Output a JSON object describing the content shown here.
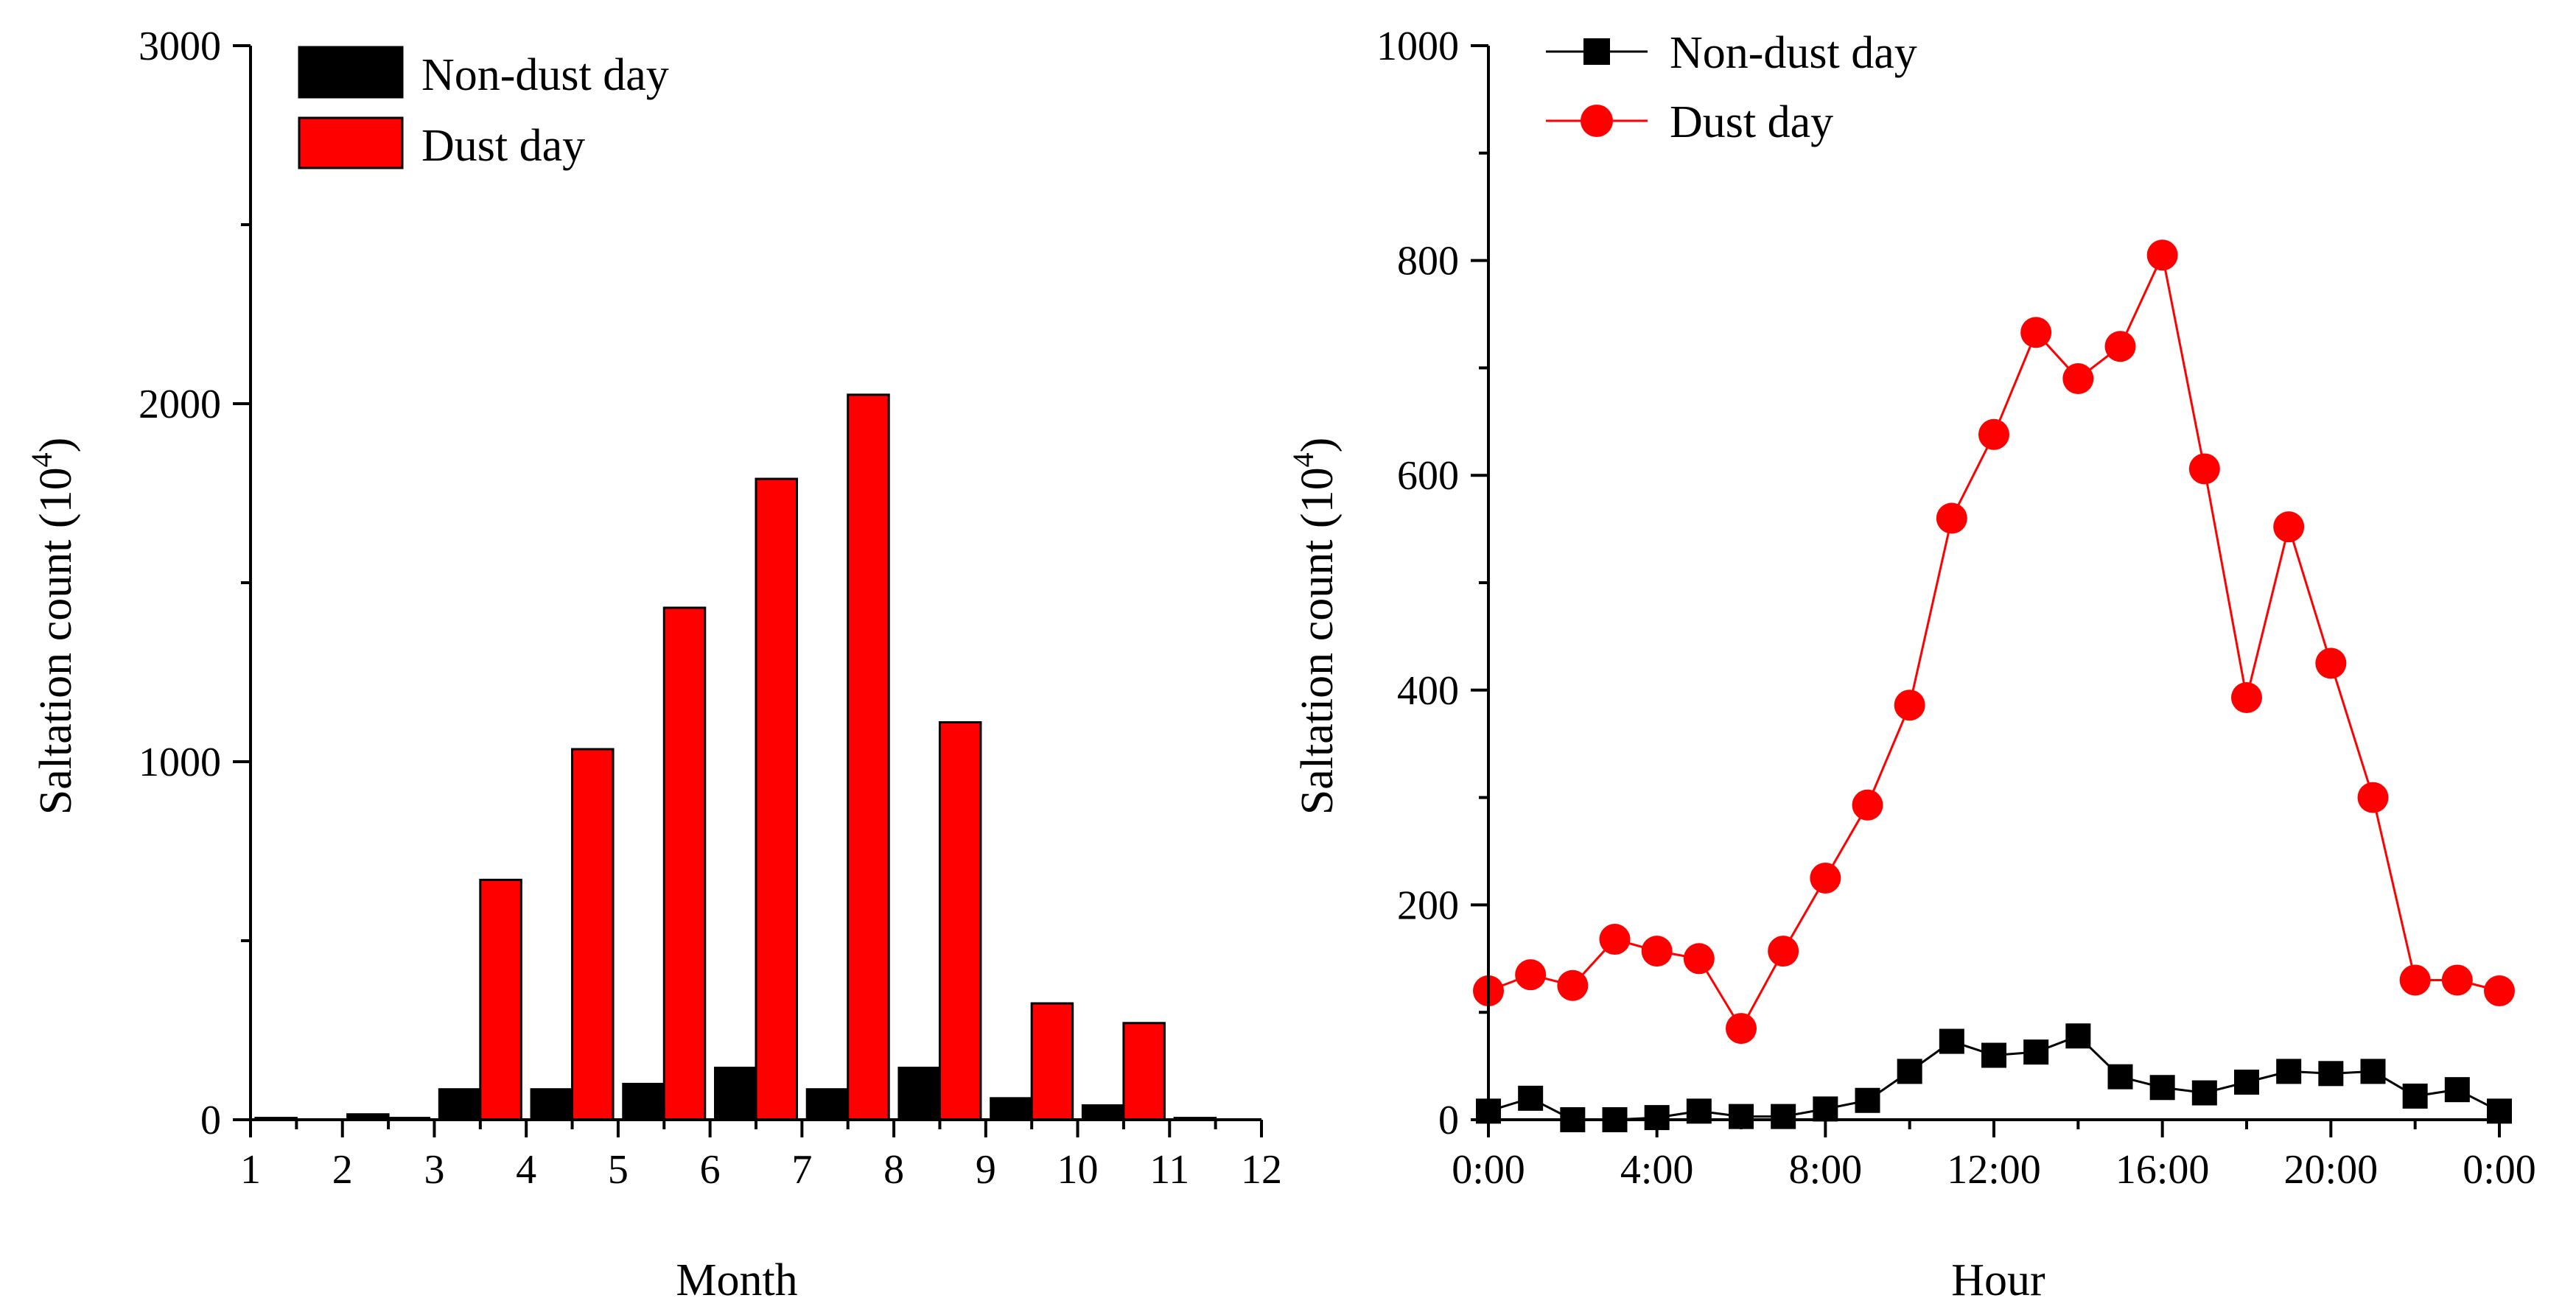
{
  "chart_data": [
    {
      "type": "bar",
      "xlabel": "Month",
      "ylabel": "Saltation count (10",
      "ylabel_exponent": "4",
      "ylabel_close": ")",
      "xlim": [
        1,
        12
      ],
      "ylim": [
        0,
        3000
      ],
      "x_ticks": [
        "1",
        "2",
        "3",
        "4",
        "5",
        "6",
        "7",
        "8",
        "9",
        "10",
        "11",
        "12"
      ],
      "y_ticks": [
        "0",
        "1000",
        "2000",
        "3000"
      ],
      "y_tick_values": [
        0,
        1000,
        2000,
        3000
      ],
      "y_minor_step": 500,
      "categories": [
        1,
        2,
        3,
        4,
        5,
        6,
        7,
        8,
        9,
        10,
        11
      ],
      "series": [
        {
          "name": "Non-dust day",
          "color": "#000000",
          "values": [
            5,
            15,
            85,
            85,
            100,
            145,
            85,
            145,
            60,
            40,
            5
          ]
        },
        {
          "name": "Dust day",
          "color": "#ff0000",
          "values": [
            0,
            5,
            670,
            1035,
            1430,
            1790,
            2025,
            1110,
            325,
            270,
            0
          ]
        }
      ],
      "legend": "top-left"
    },
    {
      "type": "line",
      "xlabel": "Hour",
      "ylabel": "Saltation count (10",
      "ylabel_exponent": "4",
      "ylabel_close": ")",
      "xlim": [
        0,
        24
      ],
      "ylim": [
        0,
        1000
      ],
      "x_ticks": [
        "0:00",
        "4:00",
        "8:00",
        "12:00",
        "16:00",
        "20:00",
        "0:00"
      ],
      "x_tick_values": [
        0,
        4,
        8,
        12,
        16,
        20,
        24
      ],
      "y_ticks": [
        "0",
        "200",
        "400",
        "600",
        "800",
        "1000"
      ],
      "y_tick_values": [
        0,
        200,
        400,
        600,
        800,
        1000
      ],
      "y_minor_step": 100,
      "x": [
        0,
        1,
        2,
        3,
        4,
        5,
        6,
        7,
        8,
        9,
        10,
        11,
        12,
        13,
        14,
        15,
        16,
        17,
        18,
        19,
        20,
        21,
        22,
        23,
        24
      ],
      "series": [
        {
          "name": "Non-dust day",
          "color": "#000000",
          "marker": "square",
          "values": [
            8,
            20,
            0,
            0,
            2,
            8,
            3,
            3,
            10,
            18,
            45,
            73,
            60,
            63,
            78,
            40,
            30,
            25,
            35,
            45,
            43,
            45,
            22,
            28,
            8
          ]
        },
        {
          "name": "Dust day",
          "color": "#ff0000",
          "marker": "circle",
          "values": [
            120,
            135,
            125,
            168,
            157,
            150,
            85,
            157,
            225,
            293,
            386,
            560,
            638,
            733,
            690,
            720,
            805,
            606,
            393,
            552,
            425,
            300,
            130,
            130,
            120
          ]
        }
      ],
      "legend": "top-left"
    }
  ]
}
